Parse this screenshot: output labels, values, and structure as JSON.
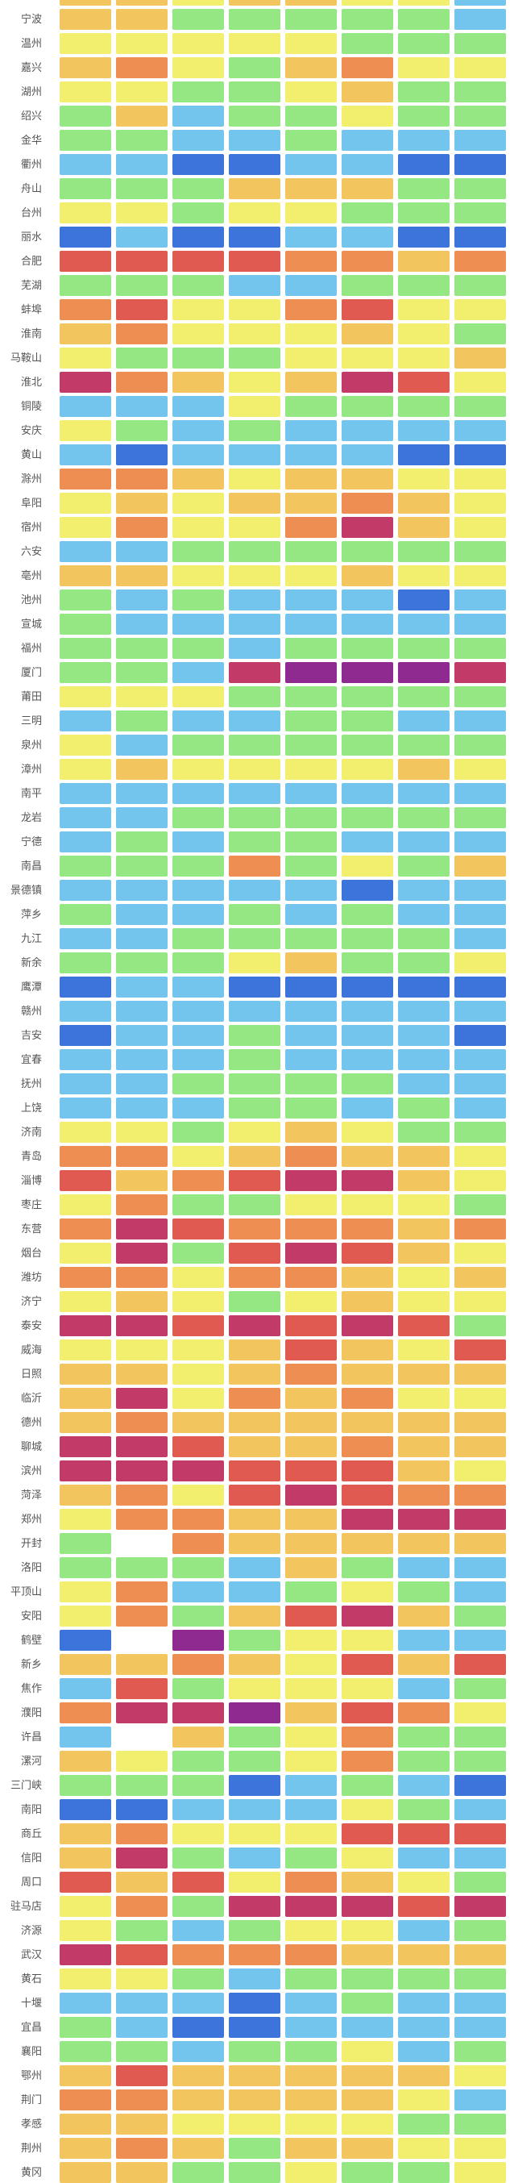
{
  "chart_data": {
    "type": "heatmap",
    "title": "",
    "column_count": 8,
    "legend_position": "none",
    "grid": "white-gaps-between-cells",
    "label_text_color": "#555555",
    "palette": {
      "db": "#3d74dc",
      "lb": "#74c5ee",
      "g": "#94e783",
      "y": "#f2ee6e",
      "a": "#f2c55e",
      "o": "#ee8e52",
      "r": "#e05a52",
      "m": "#c23a68",
      "p": "#8e2a90",
      "w": "#ffffff"
    },
    "palette_meaning": {
      "db": "dark-blue",
      "lb": "light-blue",
      "g": "green",
      "y": "yellow",
      "a": "amber",
      "o": "orange",
      "r": "red",
      "m": "crimson",
      "p": "purple",
      "w": "blank"
    },
    "rows": [
      {
        "label": "",
        "cells": [
          "a",
          "a",
          "y",
          "a",
          "a",
          "y",
          "y",
          "lb"
        ]
      },
      {
        "label": "宁波",
        "cells": [
          "a",
          "a",
          "g",
          "g",
          "g",
          "g",
          "g",
          "lb"
        ]
      },
      {
        "label": "温州",
        "cells": [
          "y",
          "y",
          "y",
          "y",
          "y",
          "g",
          "g",
          "g"
        ]
      },
      {
        "label": "嘉兴",
        "cells": [
          "a",
          "o",
          "y",
          "g",
          "a",
          "o",
          "y",
          "y"
        ]
      },
      {
        "label": "湖州",
        "cells": [
          "y",
          "y",
          "g",
          "g",
          "y",
          "a",
          "g",
          "g"
        ]
      },
      {
        "label": "绍兴",
        "cells": [
          "g",
          "a",
          "lb",
          "g",
          "g",
          "y",
          "g",
          "g"
        ]
      },
      {
        "label": "金华",
        "cells": [
          "g",
          "g",
          "lb",
          "lb",
          "g",
          "lb",
          "lb",
          "lb"
        ]
      },
      {
        "label": "衢州",
        "cells": [
          "lb",
          "lb",
          "db",
          "db",
          "lb",
          "lb",
          "db",
          "db"
        ]
      },
      {
        "label": "舟山",
        "cells": [
          "g",
          "g",
          "g",
          "a",
          "a",
          "a",
          "g",
          "g"
        ]
      },
      {
        "label": "台州",
        "cells": [
          "y",
          "y",
          "g",
          "y",
          "y",
          "g",
          "g",
          "g"
        ]
      },
      {
        "label": "丽水",
        "cells": [
          "db",
          "lb",
          "db",
          "db",
          "lb",
          "lb",
          "db",
          "db"
        ]
      },
      {
        "label": "合肥",
        "cells": [
          "r",
          "r",
          "r",
          "r",
          "o",
          "o",
          "a",
          "o"
        ]
      },
      {
        "label": "芜湖",
        "cells": [
          "g",
          "g",
          "g",
          "lb",
          "lb",
          "g",
          "g",
          "g"
        ]
      },
      {
        "label": "蚌埠",
        "cells": [
          "o",
          "r",
          "y",
          "y",
          "o",
          "r",
          "y",
          "y"
        ]
      },
      {
        "label": "淮南",
        "cells": [
          "a",
          "o",
          "y",
          "y",
          "y",
          "a",
          "y",
          "g"
        ]
      },
      {
        "label": "马鞍山",
        "cells": [
          "y",
          "g",
          "g",
          "g",
          "y",
          "y",
          "y",
          "a"
        ]
      },
      {
        "label": "淮北",
        "cells": [
          "m",
          "o",
          "a",
          "y",
          "a",
          "m",
          "r",
          "y"
        ]
      },
      {
        "label": "铜陵",
        "cells": [
          "lb",
          "lb",
          "lb",
          "y",
          "g",
          "g",
          "g",
          "g"
        ]
      },
      {
        "label": "安庆",
        "cells": [
          "y",
          "g",
          "lb",
          "g",
          "lb",
          "lb",
          "lb",
          "lb"
        ]
      },
      {
        "label": "黄山",
        "cells": [
          "lb",
          "db",
          "lb",
          "lb",
          "lb",
          "lb",
          "db",
          "db"
        ]
      },
      {
        "label": "滁州",
        "cells": [
          "o",
          "o",
          "a",
          "y",
          "a",
          "a",
          "y",
          "y"
        ]
      },
      {
        "label": "阜阳",
        "cells": [
          "y",
          "a",
          "y",
          "a",
          "a",
          "o",
          "a",
          "y"
        ]
      },
      {
        "label": "宿州",
        "cells": [
          "y",
          "o",
          "y",
          "y",
          "o",
          "m",
          "a",
          "y"
        ]
      },
      {
        "label": "六安",
        "cells": [
          "lb",
          "lb",
          "g",
          "g",
          "g",
          "g",
          "g",
          "g"
        ]
      },
      {
        "label": "亳州",
        "cells": [
          "a",
          "a",
          "y",
          "y",
          "y",
          "a",
          "y",
          "y"
        ]
      },
      {
        "label": "池州",
        "cells": [
          "g",
          "lb",
          "g",
          "lb",
          "lb",
          "lb",
          "db",
          "lb"
        ]
      },
      {
        "label": "宣城",
        "cells": [
          "g",
          "lb",
          "lb",
          "lb",
          "lb",
          "lb",
          "lb",
          "lb"
        ]
      },
      {
        "label": "福州",
        "cells": [
          "g",
          "g",
          "g",
          "lb",
          "g",
          "g",
          "g",
          "g"
        ]
      },
      {
        "label": "厦门",
        "cells": [
          "g",
          "g",
          "lb",
          "m",
          "p",
          "p",
          "p",
          "m"
        ]
      },
      {
        "label": "莆田",
        "cells": [
          "y",
          "y",
          "y",
          "g",
          "g",
          "g",
          "g",
          "g"
        ]
      },
      {
        "label": "三明",
        "cells": [
          "lb",
          "g",
          "lb",
          "lb",
          "g",
          "g",
          "lb",
          "lb"
        ]
      },
      {
        "label": "泉州",
        "cells": [
          "y",
          "lb",
          "g",
          "g",
          "g",
          "g",
          "g",
          "g"
        ]
      },
      {
        "label": "漳州",
        "cells": [
          "y",
          "a",
          "y",
          "y",
          "y",
          "y",
          "a",
          "y"
        ]
      },
      {
        "label": "南平",
        "cells": [
          "lb",
          "lb",
          "lb",
          "lb",
          "lb",
          "lb",
          "lb",
          "lb"
        ]
      },
      {
        "label": "龙岩",
        "cells": [
          "lb",
          "lb",
          "g",
          "g",
          "g",
          "g",
          "g",
          "g"
        ]
      },
      {
        "label": "宁德",
        "cells": [
          "lb",
          "g",
          "lb",
          "g",
          "g",
          "lb",
          "lb",
          "lb"
        ]
      },
      {
        "label": "南昌",
        "cells": [
          "g",
          "g",
          "g",
          "o",
          "g",
          "y",
          "g",
          "a"
        ]
      },
      {
        "label": "景德镇",
        "cells": [
          "lb",
          "lb",
          "lb",
          "lb",
          "lb",
          "db",
          "lb",
          "lb"
        ]
      },
      {
        "label": "萍乡",
        "cells": [
          "g",
          "lb",
          "lb",
          "g",
          "lb",
          "g",
          "lb",
          "lb"
        ]
      },
      {
        "label": "九江",
        "cells": [
          "lb",
          "lb",
          "g",
          "g",
          "g",
          "g",
          "g",
          "lb"
        ]
      },
      {
        "label": "新余",
        "cells": [
          "g",
          "g",
          "g",
          "y",
          "a",
          "g",
          "g",
          "y"
        ]
      },
      {
        "label": "鹰潭",
        "cells": [
          "db",
          "lb",
          "lb",
          "db",
          "db",
          "db",
          "db",
          "db"
        ]
      },
      {
        "label": "赣州",
        "cells": [
          "lb",
          "lb",
          "lb",
          "lb",
          "lb",
          "lb",
          "lb",
          "lb"
        ]
      },
      {
        "label": "吉安",
        "cells": [
          "db",
          "lb",
          "lb",
          "g",
          "lb",
          "lb",
          "lb",
          "db"
        ]
      },
      {
        "label": "宜春",
        "cells": [
          "lb",
          "lb",
          "lb",
          "g",
          "lb",
          "lb",
          "lb",
          "lb"
        ]
      },
      {
        "label": "抚州",
        "cells": [
          "lb",
          "lb",
          "g",
          "g",
          "g",
          "g",
          "lb",
          "lb"
        ]
      },
      {
        "label": "上饶",
        "cells": [
          "lb",
          "lb",
          "lb",
          "g",
          "g",
          "lb",
          "g",
          "lb"
        ]
      },
      {
        "label": "济南",
        "cells": [
          "y",
          "y",
          "g",
          "y",
          "a",
          "y",
          "g",
          "g"
        ]
      },
      {
        "label": "青岛",
        "cells": [
          "o",
          "o",
          "y",
          "a",
          "o",
          "a",
          "a",
          "y"
        ]
      },
      {
        "label": "淄博",
        "cells": [
          "r",
          "a",
          "o",
          "r",
          "m",
          "m",
          "a",
          "y"
        ]
      },
      {
        "label": "枣庄",
        "cells": [
          "y",
          "o",
          "g",
          "g",
          "y",
          "y",
          "y",
          "g"
        ]
      },
      {
        "label": "东营",
        "cells": [
          "o",
          "m",
          "r",
          "o",
          "o",
          "o",
          "a",
          "o"
        ]
      },
      {
        "label": "烟台",
        "cells": [
          "y",
          "m",
          "g",
          "r",
          "m",
          "r",
          "a",
          "y"
        ]
      },
      {
        "label": "潍坊",
        "cells": [
          "o",
          "o",
          "y",
          "o",
          "o",
          "a",
          "y",
          "a"
        ]
      },
      {
        "label": "济宁",
        "cells": [
          "y",
          "a",
          "y",
          "g",
          "y",
          "a",
          "y",
          "y"
        ]
      },
      {
        "label": "泰安",
        "cells": [
          "m",
          "m",
          "r",
          "m",
          "r",
          "m",
          "r",
          "g"
        ]
      },
      {
        "label": "威海",
        "cells": [
          "y",
          "y",
          "y",
          "a",
          "r",
          "a",
          "y",
          "r"
        ]
      },
      {
        "label": "日照",
        "cells": [
          "a",
          "a",
          "y",
          "a",
          "o",
          "a",
          "a",
          "a"
        ]
      },
      {
        "label": "临沂",
        "cells": [
          "a",
          "m",
          "y",
          "o",
          "a",
          "o",
          "y",
          "y"
        ]
      },
      {
        "label": "德州",
        "cells": [
          "a",
          "o",
          "a",
          "a",
          "a",
          "a",
          "a",
          "a"
        ]
      },
      {
        "label": "聊城",
        "cells": [
          "m",
          "m",
          "r",
          "a",
          "a",
          "o",
          "a",
          "a"
        ]
      },
      {
        "label": "滨州",
        "cells": [
          "m",
          "m",
          "m",
          "r",
          "r",
          "r",
          "a",
          "y"
        ]
      },
      {
        "label": "菏泽",
        "cells": [
          "a",
          "o",
          "y",
          "r",
          "m",
          "r",
          "o",
          "o"
        ]
      },
      {
        "label": "郑州",
        "cells": [
          "y",
          "o",
          "o",
          "a",
          "a",
          "m",
          "m",
          "m"
        ]
      },
      {
        "label": "开封",
        "cells": [
          "g",
          "w",
          "o",
          "a",
          "a",
          "a",
          "a",
          "a"
        ]
      },
      {
        "label": "洛阳",
        "cells": [
          "g",
          "g",
          "g",
          "lb",
          "a",
          "g",
          "lb",
          "lb"
        ]
      },
      {
        "label": "平顶山",
        "cells": [
          "y",
          "o",
          "lb",
          "lb",
          "g",
          "y",
          "g",
          "lb"
        ]
      },
      {
        "label": "安阳",
        "cells": [
          "y",
          "o",
          "g",
          "a",
          "r",
          "m",
          "a",
          "g"
        ]
      },
      {
        "label": "鹤壁",
        "cells": [
          "db",
          "w",
          "p",
          "g",
          "y",
          "y",
          "lb",
          "lb"
        ]
      },
      {
        "label": "新乡",
        "cells": [
          "a",
          "a",
          "o",
          "a",
          "y",
          "r",
          "a",
          "r"
        ]
      },
      {
        "label": "焦作",
        "cells": [
          "lb",
          "r",
          "g",
          "y",
          "y",
          "y",
          "lb",
          "g"
        ]
      },
      {
        "label": "濮阳",
        "cells": [
          "o",
          "m",
          "m",
          "p",
          "a",
          "r",
          "o",
          "y"
        ]
      },
      {
        "label": "许昌",
        "cells": [
          "lb",
          "w",
          "a",
          "g",
          "y",
          "o",
          "g",
          "g"
        ]
      },
      {
        "label": "漯河",
        "cells": [
          "a",
          "y",
          "g",
          "g",
          "y",
          "o",
          "g",
          "g"
        ]
      },
      {
        "label": "三门峡",
        "cells": [
          "g",
          "g",
          "g",
          "db",
          "lb",
          "g",
          "lb",
          "db"
        ]
      },
      {
        "label": "南阳",
        "cells": [
          "db",
          "db",
          "lb",
          "lb",
          "lb",
          "y",
          "g",
          "lb"
        ]
      },
      {
        "label": "商丘",
        "cells": [
          "a",
          "o",
          "y",
          "y",
          "y",
          "r",
          "r",
          "r"
        ]
      },
      {
        "label": "信阳",
        "cells": [
          "a",
          "m",
          "g",
          "lb",
          "g",
          "y",
          "lb",
          "lb"
        ]
      },
      {
        "label": "周口",
        "cells": [
          "r",
          "a",
          "r",
          "y",
          "o",
          "a",
          "y",
          "g"
        ]
      },
      {
        "label": "驻马店",
        "cells": [
          "y",
          "o",
          "g",
          "m",
          "m",
          "m",
          "r",
          "m"
        ]
      },
      {
        "label": "济源",
        "cells": [
          "y",
          "g",
          "lb",
          "g",
          "y",
          "y",
          "lb",
          "g"
        ]
      },
      {
        "label": "武汉",
        "cells": [
          "m",
          "r",
          "o",
          "o",
          "o",
          "a",
          "a",
          "a"
        ]
      },
      {
        "label": "黄石",
        "cells": [
          "y",
          "y",
          "g",
          "lb",
          "g",
          "g",
          "g",
          "g"
        ]
      },
      {
        "label": "十堰",
        "cells": [
          "lb",
          "lb",
          "lb",
          "db",
          "lb",
          "g",
          "lb",
          "lb"
        ]
      },
      {
        "label": "宜昌",
        "cells": [
          "g",
          "lb",
          "db",
          "db",
          "lb",
          "lb",
          "lb",
          "lb"
        ]
      },
      {
        "label": "襄阳",
        "cells": [
          "g",
          "g",
          "lb",
          "g",
          "g",
          "y",
          "lb",
          "g"
        ]
      },
      {
        "label": "鄂州",
        "cells": [
          "a",
          "r",
          "a",
          "a",
          "a",
          "a",
          "a",
          "y"
        ]
      },
      {
        "label": "荆门",
        "cells": [
          "o",
          "o",
          "a",
          "a",
          "a",
          "a",
          "y",
          "lb"
        ]
      },
      {
        "label": "孝感",
        "cells": [
          "a",
          "a",
          "y",
          "y",
          "y",
          "y",
          "g",
          "g"
        ]
      },
      {
        "label": "荆州",
        "cells": [
          "a",
          "o",
          "a",
          "g",
          "a",
          "a",
          "y",
          "y"
        ]
      },
      {
        "label": "黄冈",
        "cells": [
          "a",
          "a",
          "g",
          "g",
          "y",
          "g",
          "g",
          "y"
        ]
      }
    ]
  }
}
